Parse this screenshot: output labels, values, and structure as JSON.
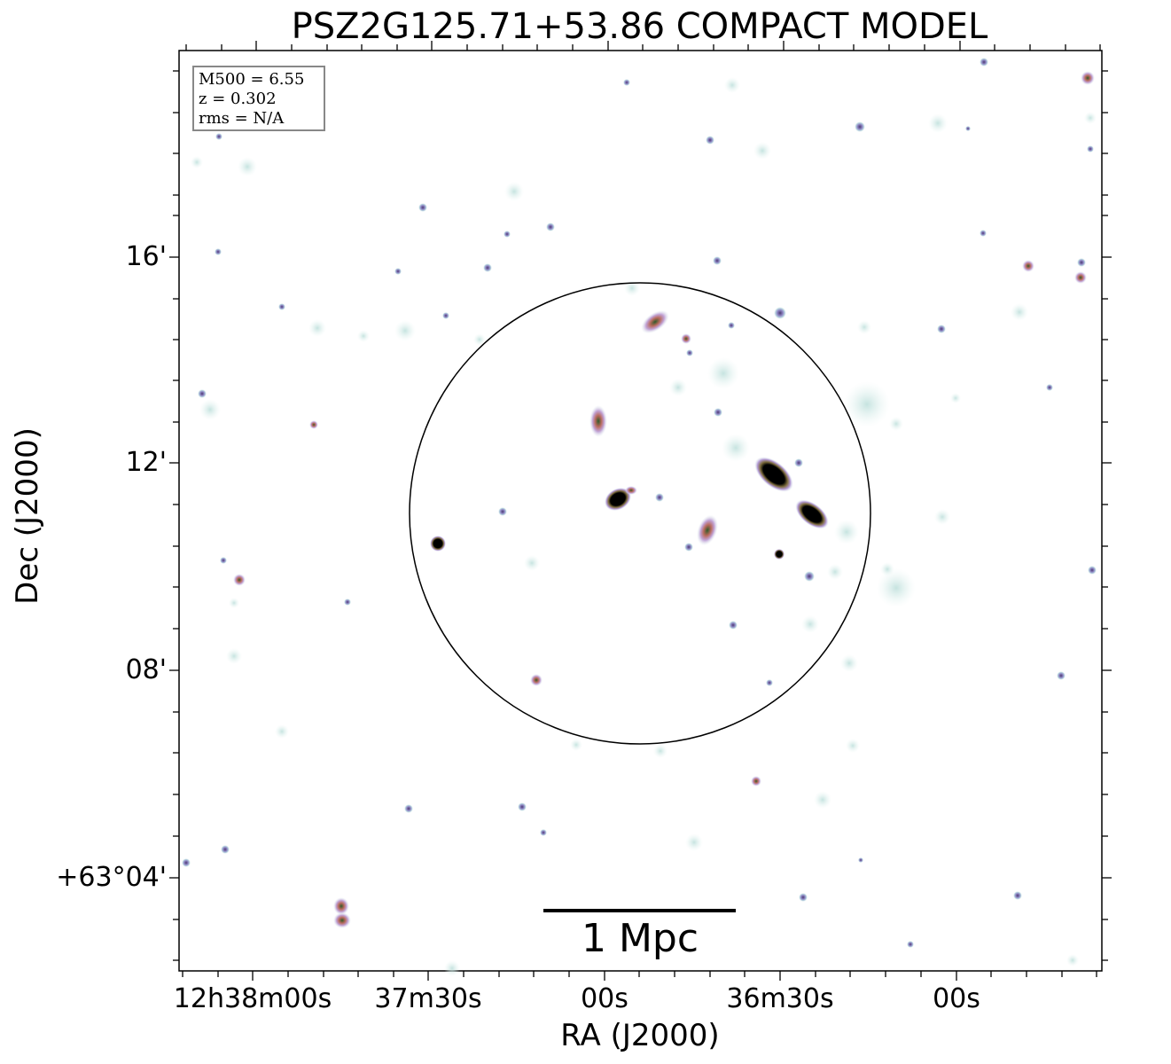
{
  "title": "PSZ2G125.71+53.86 COMPACT MODEL",
  "info": {
    "mass": "M500 = 6.55",
    "redshift": "z = 0.302",
    "rms": "rms = N/A"
  },
  "axes": {
    "xlabel": "RA (J2000)",
    "ylabel": "Dec (J2000)",
    "x_ticks": [
      "12h38m00s",
      "37m30s",
      "00s",
      "36m30s",
      "00s"
    ],
    "y_ticks": [
      "16'",
      "12'",
      "08'",
      "+63°04'"
    ]
  },
  "scale_bar": {
    "label": "1 Mpc"
  },
  "colors": {
    "halo": "#cfe8e6",
    "source_core": "#c49bb0",
    "bright_core": "#000000",
    "circle": "#000000"
  }
}
